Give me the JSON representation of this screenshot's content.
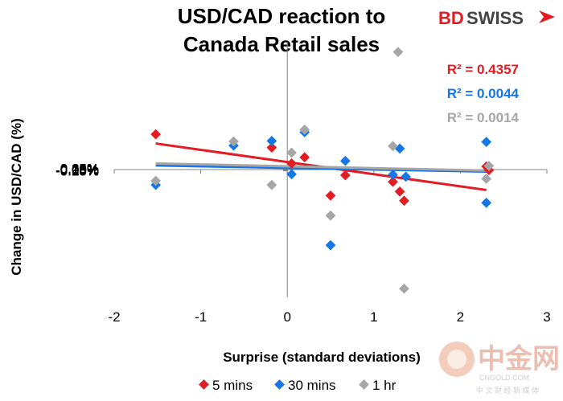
{
  "brand": {
    "bd": "BD",
    "swiss": "SWISS"
  },
  "watermark": {
    "cn": "中金网",
    "url": "CNGOLD.COM",
    "sub": "中 文 财 经 新 媒 体"
  },
  "colors": {
    "red": "#e31b23",
    "blue": "#1477e8",
    "gray": "#a6a6a6",
    "axis": "#808080"
  },
  "chart_data": {
    "type": "scatter",
    "title_lines": [
      "USD/CAD reaction to",
      "Canada Retail sales"
    ],
    "xlabel": "Surprise (standard deviations)",
    "ylabel": "Change in USD/CAD (%)",
    "xlim": [
      -2,
      3
    ],
    "ylim": [
      -0.25,
      0.25
    ],
    "x_ticks": [
      "-2",
      "-1",
      "0",
      "1",
      "2",
      "3"
    ],
    "y_ticks": [
      "0.25%",
      "0.20%",
      "0.15%",
      "0.10%",
      "0.05%",
      "0.00%",
      "-0.05%",
      "-0.10%",
      "-0.15%",
      "-0.20%",
      "-0.25%"
    ],
    "grid": false,
    "legend_position": "bottom",
    "series": [
      {
        "name": "5 mins",
        "color": "#e31b23",
        "r2": "R² = 0.4357",
        "trend": [
          [
            -1.52,
            0.051
          ],
          [
            2.3,
            -0.04
          ]
        ],
        "points": [
          [
            -1.52,
            0.069
          ],
          [
            -0.18,
            0.043
          ],
          [
            0.05,
            0.012
          ],
          [
            0.2,
            0.024
          ],
          [
            0.5,
            -0.051
          ],
          [
            0.67,
            -0.011
          ],
          [
            1.22,
            -0.024
          ],
          [
            1.3,
            -0.043
          ],
          [
            1.35,
            -0.061
          ],
          [
            2.3,
            0.006
          ],
          [
            2.33,
            -0.001
          ]
        ]
      },
      {
        "name": "30 mins",
        "color": "#1477e8",
        "r2": "R² = 0.0044",
        "trend": [
          [
            -1.52,
            0.008
          ],
          [
            2.3,
            -0.004
          ]
        ],
        "points": [
          [
            -1.52,
            -0.03
          ],
          [
            -0.62,
            0.047
          ],
          [
            -0.18,
            0.056
          ],
          [
            0.2,
            0.073
          ],
          [
            0.05,
            -0.009
          ],
          [
            0.5,
            -0.148
          ],
          [
            0.67,
            0.017
          ],
          [
            1.22,
            -0.01
          ],
          [
            1.3,
            0.041
          ],
          [
            1.37,
            -0.014
          ],
          [
            2.3,
            0.054
          ],
          [
            2.3,
            -0.065
          ]
        ]
      },
      {
        "name": "1 hr",
        "color": "#a6a6a6",
        "r2": "R² = 0.0014",
        "trend": [
          [
            -1.52,
            0.012
          ],
          [
            2.3,
            -0.002
          ]
        ],
        "points": [
          [
            -1.52,
            -0.022
          ],
          [
            -0.62,
            0.055
          ],
          [
            -0.18,
            -0.03
          ],
          [
            0.05,
            0.033
          ],
          [
            0.2,
            0.078
          ],
          [
            0.5,
            -0.09
          ],
          [
            1.22,
            0.046
          ],
          [
            1.28,
            0.23
          ],
          [
            1.35,
            -0.233
          ],
          [
            2.3,
            -0.018
          ],
          [
            2.33,
            0.007
          ]
        ]
      }
    ]
  }
}
